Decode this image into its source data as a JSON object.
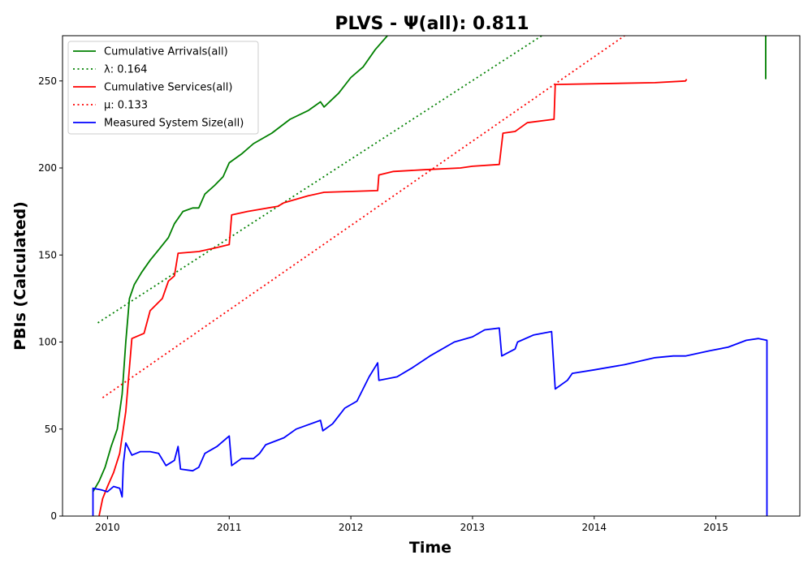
{
  "chart_data": {
    "type": "line",
    "title": "PLVS -  Ψ(all): 0.811",
    "xlabel": "Time",
    "ylabel": "PBIs (Calculated)",
    "xlim": [
      2009.63,
      2015.69
    ],
    "ylim": [
      0,
      276
    ],
    "x_ticks": [
      2010,
      2011,
      2012,
      2013,
      2014,
      2015
    ],
    "x_tick_labels": [
      "2010",
      "2011",
      "2012",
      "2013",
      "2014",
      "2015"
    ],
    "y_ticks": [
      0,
      50,
      100,
      150,
      200,
      250
    ],
    "y_tick_labels": [
      "0",
      "50",
      "100",
      "150",
      "200",
      "250"
    ],
    "grid": false,
    "legend_position": "top-left",
    "series": [
      {
        "name": "Cumulative Arrivals(all)",
        "color": "#008000",
        "style": "solid",
        "points": [
          [
            2009.88,
            14
          ],
          [
            2009.93,
            20
          ],
          [
            2009.98,
            28
          ],
          [
            2010.03,
            40
          ],
          [
            2010.08,
            50
          ],
          [
            2010.12,
            70
          ],
          [
            2010.15,
            100
          ],
          [
            2010.18,
            125
          ],
          [
            2010.22,
            133
          ],
          [
            2010.28,
            140
          ],
          [
            2010.35,
            147
          ],
          [
            2010.42,
            153
          ],
          [
            2010.5,
            160
          ],
          [
            2010.55,
            168
          ],
          [
            2010.62,
            175
          ],
          [
            2010.7,
            177
          ],
          [
            2010.75,
            177
          ],
          [
            2010.8,
            185
          ],
          [
            2010.88,
            190
          ],
          [
            2010.95,
            195
          ],
          [
            2011.0,
            203
          ],
          [
            2011.1,
            208
          ],
          [
            2011.2,
            214
          ],
          [
            2011.35,
            220
          ],
          [
            2011.5,
            228
          ],
          [
            2011.65,
            233
          ],
          [
            2011.75,
            238
          ],
          [
            2011.78,
            235
          ],
          [
            2011.9,
            243
          ],
          [
            2012.0,
            252
          ],
          [
            2012.1,
            258
          ],
          [
            2012.2,
            268
          ],
          [
            2012.3,
            276
          ]
        ]
      },
      {
        "name": "λ: 0.164",
        "color": "#008000",
        "style": "dotted",
        "points": [
          [
            2009.92,
            111
          ],
          [
            2013.57,
            276
          ]
        ]
      },
      {
        "name": "Cumulative Services(all)",
        "color": "#ff0000",
        "style": "solid",
        "points": [
          [
            2009.93,
            0
          ],
          [
            2009.96,
            10
          ],
          [
            2010.0,
            17
          ],
          [
            2010.05,
            25
          ],
          [
            2010.1,
            36
          ],
          [
            2010.15,
            60
          ],
          [
            2010.2,
            102
          ],
          [
            2010.3,
            105
          ],
          [
            2010.35,
            118
          ],
          [
            2010.45,
            125
          ],
          [
            2010.5,
            135
          ],
          [
            2010.55,
            138
          ],
          [
            2010.58,
            151
          ],
          [
            2010.75,
            152
          ],
          [
            2010.88,
            154
          ],
          [
            2011.0,
            156
          ],
          [
            2011.02,
            173
          ],
          [
            2011.15,
            175
          ],
          [
            2011.4,
            178
          ],
          [
            2011.45,
            180
          ],
          [
            2011.65,
            184
          ],
          [
            2011.78,
            186
          ],
          [
            2012.22,
            187
          ],
          [
            2012.23,
            196
          ],
          [
            2012.35,
            198
          ],
          [
            2012.6,
            199
          ],
          [
            2012.9,
            200
          ],
          [
            2013.0,
            201
          ],
          [
            2013.22,
            202
          ],
          [
            2013.25,
            220
          ],
          [
            2013.35,
            221
          ],
          [
            2013.45,
            226
          ],
          [
            2013.67,
            228
          ],
          [
            2013.68,
            248
          ],
          [
            2014.5,
            249
          ],
          [
            2014.75,
            250
          ],
          [
            2014.76,
            251
          ]
        ]
      },
      {
        "name": "μ: 0.133",
        "color": "#ff0000",
        "style": "dotted",
        "points": [
          [
            2009.96,
            68
          ],
          [
            2014.25,
            276
          ]
        ]
      },
      {
        "name": "Measured System Size(all)",
        "color": "#0000ff",
        "style": "solid",
        "points": [
          [
            2009.88,
            0
          ],
          [
            2009.88,
            16
          ],
          [
            2009.95,
            15
          ],
          [
            2010.0,
            14
          ],
          [
            2010.05,
            17
          ],
          [
            2010.1,
            16
          ],
          [
            2010.12,
            11
          ],
          [
            2010.13,
            30
          ],
          [
            2010.15,
            42
          ],
          [
            2010.2,
            35
          ],
          [
            2010.27,
            37
          ],
          [
            2010.35,
            37
          ],
          [
            2010.42,
            36
          ],
          [
            2010.48,
            29
          ],
          [
            2010.55,
            32
          ],
          [
            2010.58,
            40
          ],
          [
            2010.6,
            27
          ],
          [
            2010.7,
            26
          ],
          [
            2010.75,
            28
          ],
          [
            2010.8,
            36
          ],
          [
            2010.9,
            40
          ],
          [
            2011.0,
            46
          ],
          [
            2011.02,
            29
          ],
          [
            2011.1,
            33
          ],
          [
            2011.2,
            33
          ],
          [
            2011.25,
            36
          ],
          [
            2011.3,
            41
          ],
          [
            2011.45,
            45
          ],
          [
            2011.55,
            50
          ],
          [
            2011.75,
            55
          ],
          [
            2011.77,
            49
          ],
          [
            2011.85,
            53
          ],
          [
            2011.95,
            62
          ],
          [
            2012.05,
            66
          ],
          [
            2012.15,
            80
          ],
          [
            2012.22,
            88
          ],
          [
            2012.23,
            78
          ],
          [
            2012.38,
            80
          ],
          [
            2012.5,
            85
          ],
          [
            2012.65,
            92
          ],
          [
            2012.85,
            100
          ],
          [
            2013.0,
            103
          ],
          [
            2013.1,
            107
          ],
          [
            2013.22,
            108
          ],
          [
            2013.24,
            92
          ],
          [
            2013.35,
            96
          ],
          [
            2013.37,
            100
          ],
          [
            2013.5,
            104
          ],
          [
            2013.65,
            106
          ],
          [
            2013.68,
            73
          ],
          [
            2013.78,
            78
          ],
          [
            2013.82,
            82
          ],
          [
            2014.0,
            84
          ],
          [
            2014.25,
            87
          ],
          [
            2014.5,
            91
          ],
          [
            2014.65,
            92
          ],
          [
            2014.75,
            92
          ],
          [
            2014.95,
            95
          ],
          [
            2015.1,
            97
          ],
          [
            2015.25,
            101
          ],
          [
            2015.35,
            102
          ],
          [
            2015.42,
            101
          ],
          [
            2015.42,
            0
          ]
        ]
      }
    ],
    "extra_segments": [
      {
        "color": "#008000",
        "points": [
          [
            2015.41,
            276
          ],
          [
            2015.41,
            251
          ]
        ]
      }
    ]
  }
}
